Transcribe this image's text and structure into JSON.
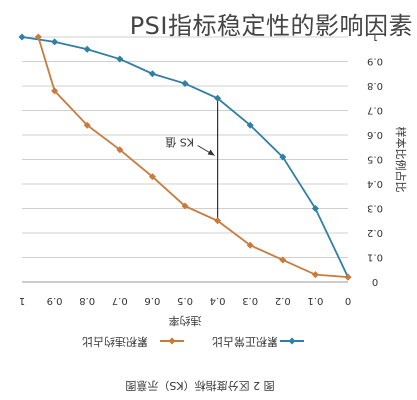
{
  "overlay": {
    "title": "PSI指标稳定性的影响因素"
  },
  "chart_data": {
    "type": "line",
    "title": "",
    "caption": "图 2 区分度指标（KS）示意图",
    "xlabel": "违约率",
    "ylabel": "样本比例占比",
    "orientation": "rotated-180",
    "x_ticks": [
      "1",
      "0.9",
      "0.8",
      "0.7",
      "0.6",
      "0.5",
      "0.4",
      "0.3",
      "0.2",
      "0.1",
      "0"
    ],
    "y_ticks": [
      "0",
      "0.1",
      "0.2",
      "0.3",
      "0.4",
      "0.5",
      "0.6",
      "0.7",
      "0.8",
      "0.9",
      "1"
    ],
    "xlim": [
      1,
      0
    ],
    "ylim": [
      0,
      1
    ],
    "grid": "horizontal",
    "legend": {
      "position": "bottom"
    },
    "annotation": {
      "text": "KS 值",
      "x": 0.4
    },
    "series": [
      {
        "name": "累积正常占比",
        "color": "#2f7fa6",
        "marker": "diamond",
        "points": [
          [
            1,
            1.0
          ],
          [
            0.9,
            0.98
          ],
          [
            0.8,
            0.95
          ],
          [
            0.7,
            0.91
          ],
          [
            0.6,
            0.85
          ],
          [
            0.5,
            0.81
          ],
          [
            0.4,
            0.75
          ],
          [
            0.3,
            0.64
          ],
          [
            0.2,
            0.51
          ],
          [
            0.1,
            0.3
          ],
          [
            0,
            0.02
          ]
        ]
      },
      {
        "name": "累积违约占比",
        "color": "#c97b3c",
        "marker": "diamond",
        "points": [
          [
            0.95,
            1.0
          ],
          [
            0.9,
            0.78
          ],
          [
            0.8,
            0.64
          ],
          [
            0.7,
            0.54
          ],
          [
            0.6,
            0.43
          ],
          [
            0.5,
            0.31
          ],
          [
            0.4,
            0.25
          ],
          [
            0.3,
            0.15
          ],
          [
            0.2,
            0.09
          ],
          [
            0.1,
            0.03
          ],
          [
            0,
            0.02
          ]
        ]
      }
    ]
  }
}
